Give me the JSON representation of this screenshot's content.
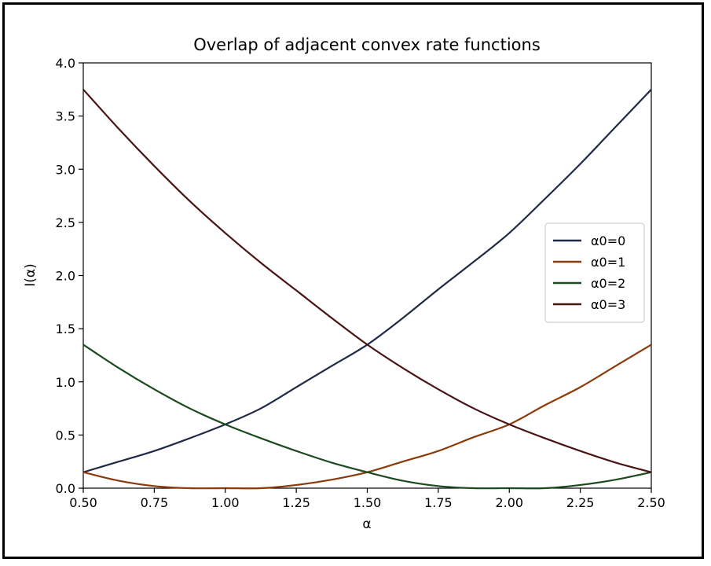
{
  "chart_data": {
    "type": "line",
    "title": "Overlap of adjacent convex rate functions",
    "xlabel": "α",
    "ylabel": "I(α)",
    "xlim": [
      0.5,
      2.5
    ],
    "ylim": [
      0.0,
      4.0
    ],
    "xticks": [
      "0.50",
      "0.75",
      "1.00",
      "1.25",
      "1.50",
      "1.75",
      "2.00",
      "2.25",
      "2.50"
    ],
    "yticks": [
      "0.0",
      "0.5",
      "1.0",
      "1.5",
      "2.0",
      "2.5",
      "3.0",
      "3.5",
      "4.0"
    ],
    "x": [
      0.5,
      0.625,
      0.75,
      0.875,
      1.0,
      1.125,
      1.25,
      1.375,
      1.5,
      1.625,
      1.75,
      1.875,
      2.0,
      2.125,
      2.25,
      2.375,
      2.5
    ],
    "series": [
      {
        "name": "α0=0",
        "color": "#1f2a44",
        "values": [
          0.15,
          0.25,
          0.35,
          0.47,
          0.6,
          0.75,
          0.95,
          1.15,
          1.35,
          1.6,
          1.87,
          2.13,
          2.4,
          2.72,
          3.05,
          3.4,
          3.75
        ]
      },
      {
        "name": "α0=1",
        "color": "#8b3a0a",
        "values": [
          0.15,
          0.07,
          0.02,
          0.0,
          0.0,
          0.0,
          0.03,
          0.08,
          0.15,
          0.25,
          0.35,
          0.48,
          0.6,
          0.78,
          0.95,
          1.15,
          1.35
        ]
      },
      {
        "name": "α0=2",
        "color": "#1b4a1e",
        "values": [
          1.35,
          1.13,
          0.93,
          0.75,
          0.6,
          0.47,
          0.35,
          0.24,
          0.15,
          0.07,
          0.02,
          0.0,
          0.0,
          0.0,
          0.03,
          0.08,
          0.15
        ]
      },
      {
        "name": "α0=3",
        "color": "#4a1414",
        "values": [
          3.75,
          3.38,
          3.03,
          2.7,
          2.4,
          2.12,
          1.86,
          1.6,
          1.35,
          1.13,
          0.93,
          0.75,
          0.6,
          0.47,
          0.35,
          0.24,
          0.15
        ]
      }
    ],
    "grid": false,
    "legend_position": "center-right"
  }
}
